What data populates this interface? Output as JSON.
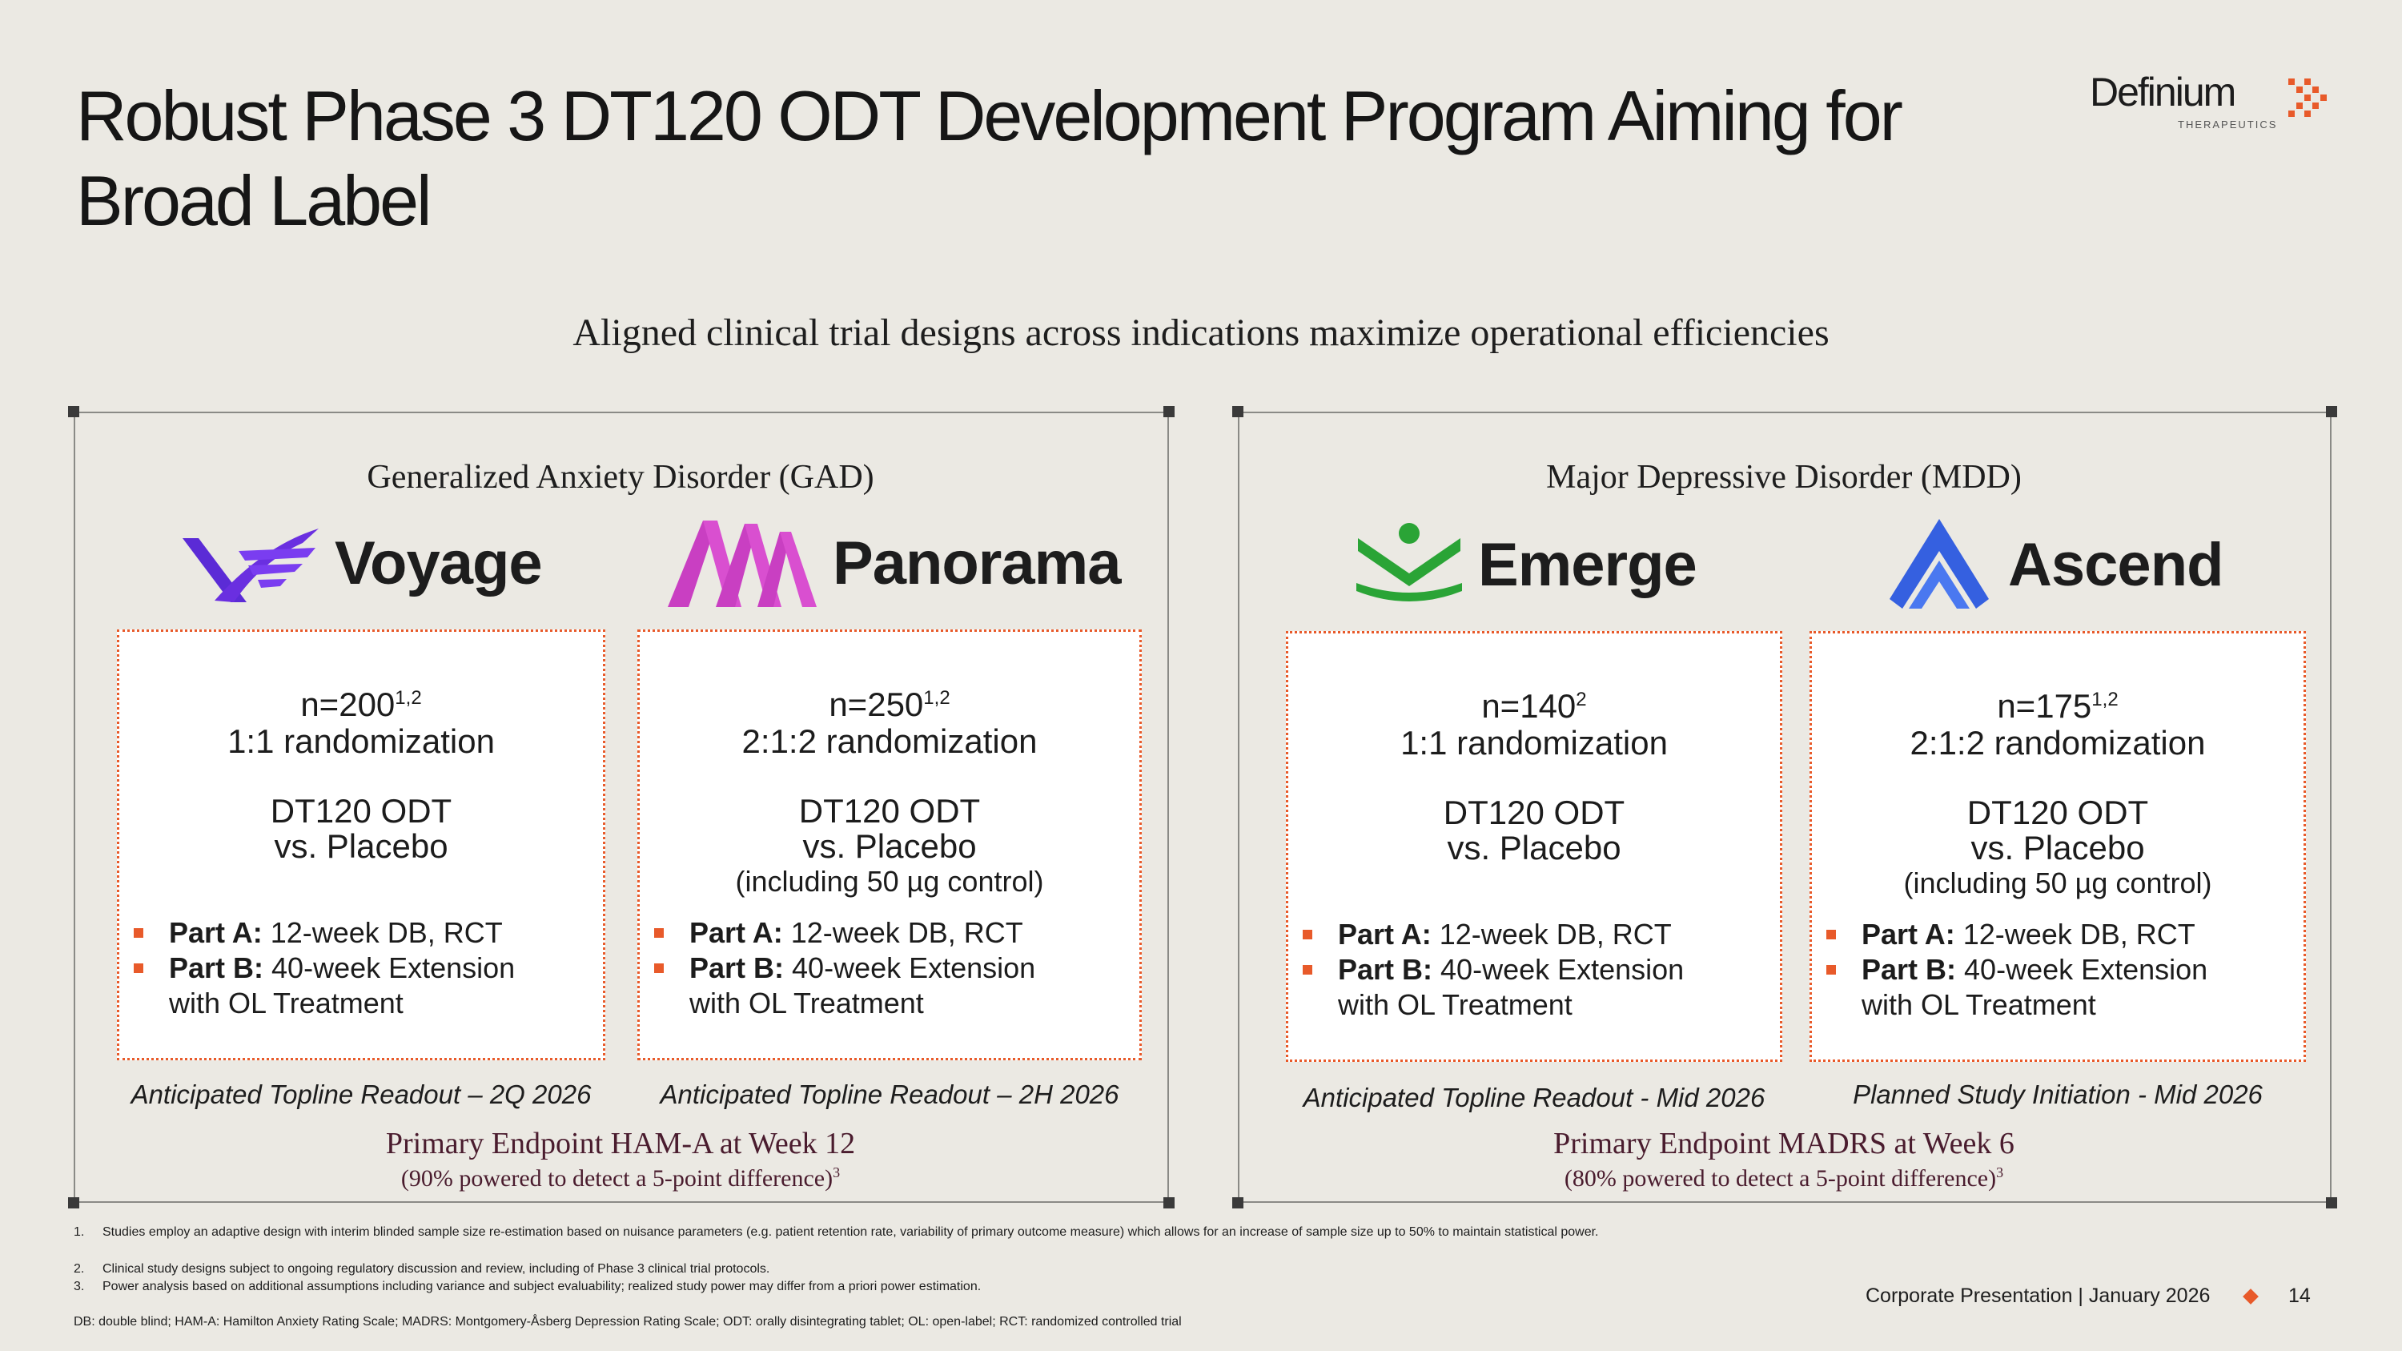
{
  "title": "Robust Phase 3 DT120 ODT Development Program Aiming for Broad Label",
  "logo": {
    "name": "Definium",
    "sub": "THERAPEUTICS"
  },
  "subtitle": "Aligned clinical trial designs across indications maximize operational efficiencies",
  "panels": [
    {
      "disease": "Generalized Anxiety Disorder (GAD)",
      "endpoint": "Primary Endpoint HAM-A at Week 12",
      "powered": "(90% powered to detect a 5-point difference)",
      "powered_sup": "3",
      "trials": [
        {
          "name": "Voyage",
          "n": "n=200",
          "n_sup": "1,2",
          "randomization": "1:1 randomization",
          "drug": "DT120 ODT",
          "comparator": "vs. Placebo",
          "control": "",
          "partA_label": "Part A:",
          "partA": " 12-week DB, RCT",
          "partB_label": "Part B:",
          "partB": " 40-week Extension",
          "partB2": "with OL Treatment",
          "readout": "Anticipated Topline Readout – 2Q 2026",
          "color": "#5b2bd6"
        },
        {
          "name": "Panorama",
          "n": "n=250",
          "n_sup": "1,2",
          "randomization": "2:1:2 randomization",
          "drug": "DT120 ODT",
          "comparator": "vs. Placebo",
          "control": "(including 50 µg control)",
          "partA_label": "Part A:",
          "partA": " 12-week DB, RCT",
          "partB_label": "Part B:",
          "partB": " 40-week Extension",
          "partB2": "with OL Treatment",
          "readout": "Anticipated Topline Readout – 2H 2026",
          "color": "#c93fc2"
        }
      ]
    },
    {
      "disease": "Major Depressive Disorder (MDD)",
      "endpoint": "Primary Endpoint MADRS at Week 6",
      "powered": "(80% powered to detect a 5-point difference)",
      "powered_sup": "3",
      "trials": [
        {
          "name": "Emerge",
          "n": "n=140",
          "n_sup": "2",
          "randomization": "1:1 randomization",
          "drug": "DT120 ODT",
          "comparator": "vs. Placebo",
          "control": "",
          "partA_label": "Part A:",
          "partA": " 12-week DB, RCT",
          "partB_label": "Part B:",
          "partB": " 40-week Extension",
          "partB2": "with OL Treatment",
          "readout": "Anticipated Topline Readout - Mid 2026",
          "color": "#2aa436"
        },
        {
          "name": "Ascend",
          "n": "n=175",
          "n_sup": "1,2",
          "randomization": "2:1:2 randomization",
          "drug": "DT120 ODT",
          "comparator": "vs. Placebo",
          "control": "(including 50 µg control)",
          "partA_label": "Part A:",
          "partA": " 12-week DB, RCT",
          "partB_label": "Part B:",
          "partB": " 40-week Extension",
          "partB2": "with OL Treatment",
          "readout": "Planned Study Initiation - Mid 2026",
          "color": "#3560e0"
        }
      ]
    }
  ],
  "footnotes": [
    {
      "num": "1.",
      "text": "Studies employ an adaptive design with interim blinded sample size re-estimation based on nuisance parameters (e.g. patient retention rate, variability of primary outcome measure) which allows for an increase of sample size up to 50% to maintain statistical power."
    },
    {
      "num": "2.",
      "text": "Clinical study designs subject to ongoing regulatory discussion and review, including of Phase 3 clinical trial protocols."
    },
    {
      "num": "3.",
      "text": "Power analysis based on additional assumptions including variance and subject evaluability; realized study power may differ from a priori power estimation."
    }
  ],
  "abbreviations": "DB: double blind; HAM-A: Hamilton Anxiety Rating Scale; MADRS: Montgomery-Åsberg Depression Rating Scale; ODT: orally disintegrating tablet; OL: open-label; RCT: randomized controlled trial",
  "footer": {
    "label": "Corporate Presentation | January 2026",
    "page": "14"
  },
  "accent": "#e85a2a"
}
